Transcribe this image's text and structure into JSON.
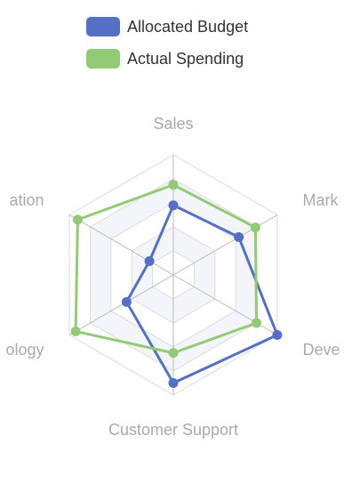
{
  "chart_data": {
    "type": "radar",
    "indicators": [
      "Sales",
      "Marketing",
      "Development",
      "Customer Support",
      "Information Technology",
      "Administration"
    ],
    "max": 100,
    "series": [
      {
        "name": "Allocated Budget",
        "color": "#5470c6",
        "values": [
          58,
          63,
          100,
          90,
          45,
          23
        ]
      },
      {
        "name": "Actual Spending",
        "color": "#91cc75",
        "values": [
          75,
          79,
          80,
          65,
          94,
          92
        ]
      }
    ],
    "visible_labels": [
      "Sales",
      "Mark",
      "Deve",
      "Customer Support",
      "ology",
      "ation"
    ],
    "split_number": 5,
    "grid": true,
    "legend_position": "top-left"
  }
}
